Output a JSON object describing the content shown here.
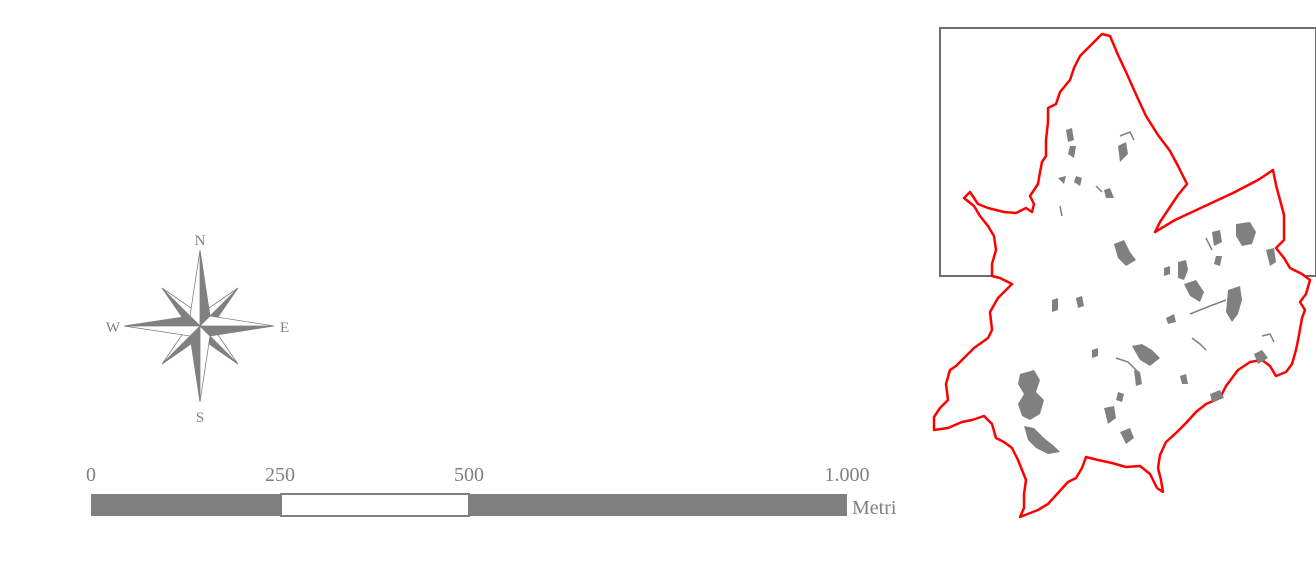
{
  "north_arrow": {
    "n": "N",
    "s": "S",
    "e": "E",
    "w": "W"
  },
  "scale_bar": {
    "tick_labels": [
      "0",
      "250",
      "500",
      "1.000"
    ],
    "unit": "Metri",
    "segments": [
      {
        "from": 0,
        "to": 250,
        "fill": "#808080"
      },
      {
        "from": 250,
        "to": 500,
        "fill": "#ffffff"
      },
      {
        "from": 500,
        "to": 1000,
        "fill": "#808080"
      }
    ]
  },
  "colors": {
    "boundary": "#ff0000",
    "patches": "#808080",
    "frame": "#6e6e6e"
  }
}
